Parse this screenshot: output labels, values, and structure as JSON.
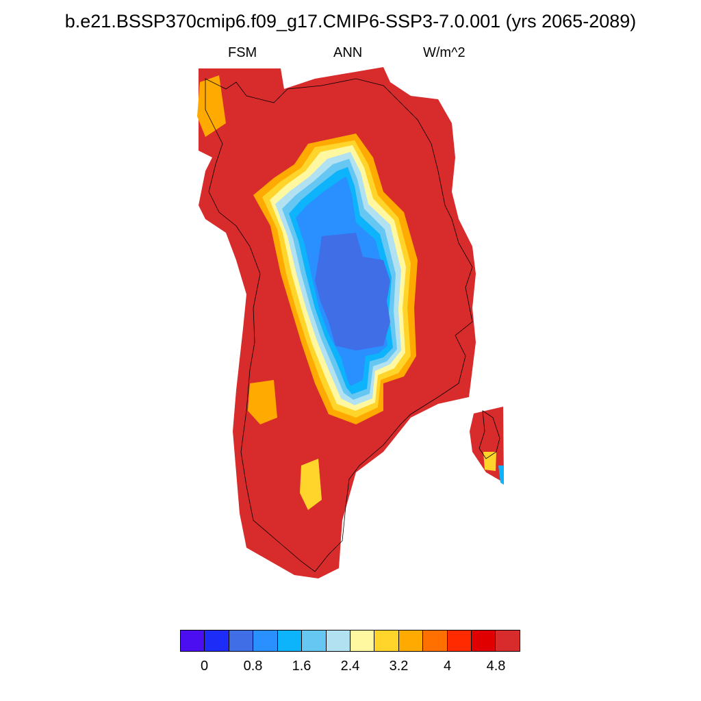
{
  "header": {
    "title": "b.e21.BSSP370cmip6.f09_g17.CMIP6-SSP3-7.0.001 (yrs 2065-2089)",
    "left_string": "FSM",
    "center_string": "ANN",
    "right_string": "W/m^2"
  },
  "colorbar": {
    "colors": [
      "#4b0ef0",
      "#1e2cf7",
      "#3f6ee6",
      "#2a8fff",
      "#0db4fb",
      "#65c7f2",
      "#b2e1f2",
      "#fff8a0",
      "#ffd52b",
      "#ffaa00",
      "#ff7000",
      "#ff2a00",
      "#e10000",
      "#d82b2b"
    ],
    "tick_labels": [
      "0",
      "0.8",
      "1.6",
      "2.4",
      "3.2",
      "4",
      "4.8"
    ]
  },
  "map": {
    "region": "Greenland",
    "variable": "FSM",
    "units": "W/m^2",
    "background_color": "#ffffff",
    "coastline_color": "#000000"
  }
}
